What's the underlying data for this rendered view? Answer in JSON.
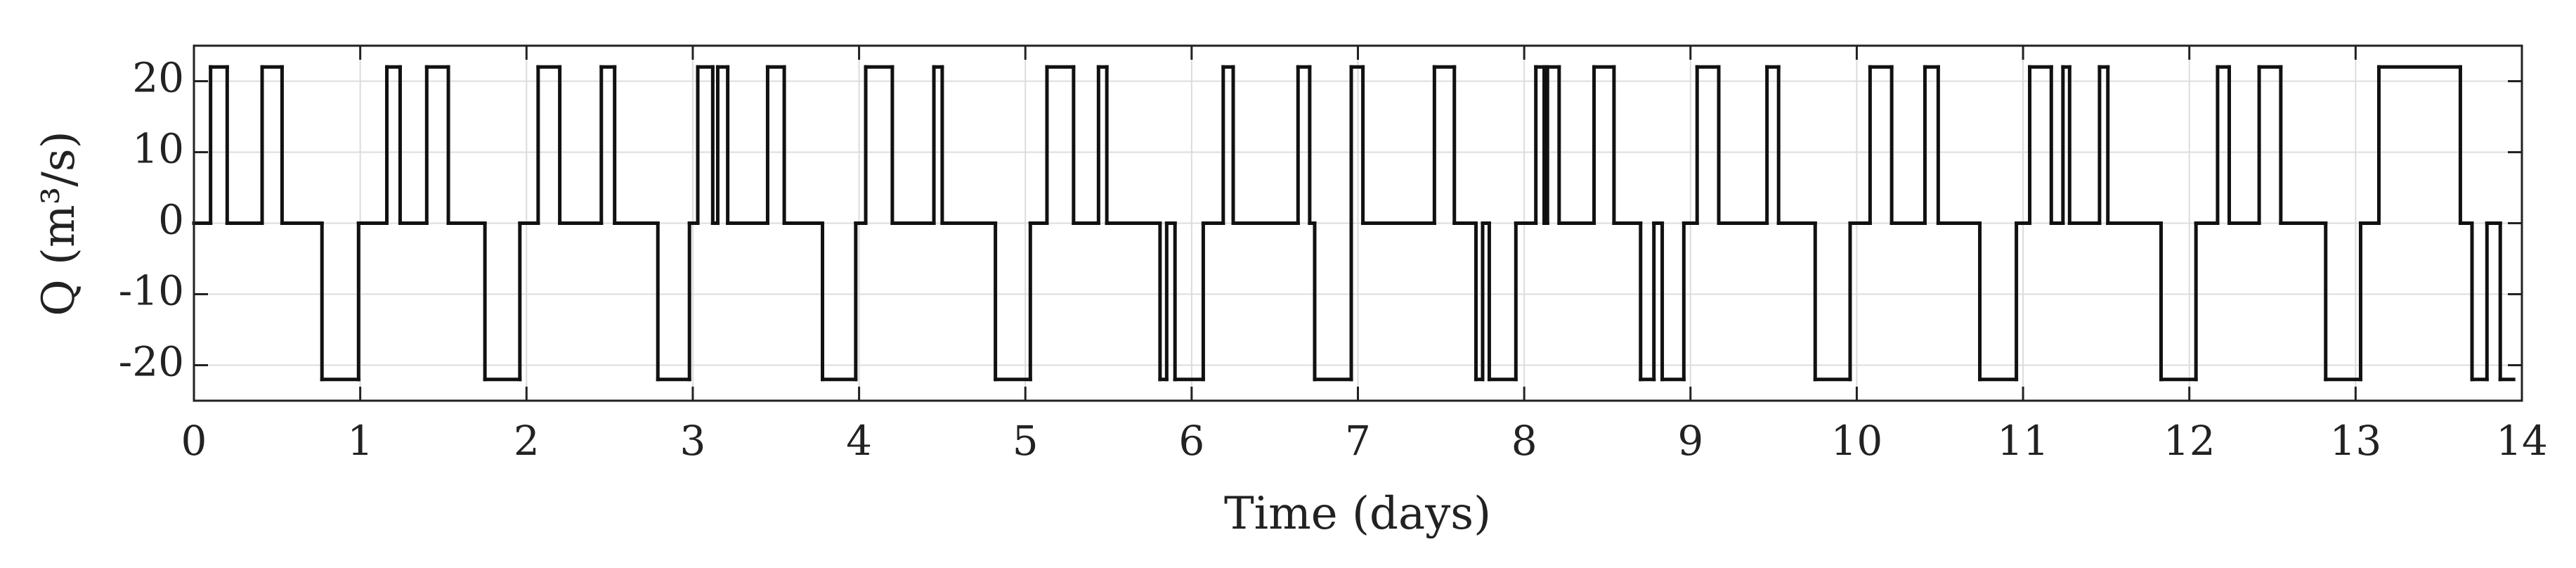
{
  "chart_data": {
    "type": "line",
    "xlabel": "Time (days)",
    "ylabel": "Q (m³/s)",
    "x": [
      0,
      0.1,
      0.2,
      0.41,
      0.53,
      0.77,
      0.99,
      1.16,
      1.24,
      1.4,
      1.53,
      1.75,
      1.96,
      2.07,
      2.2,
      2.45,
      2.53,
      2.79,
      2.98,
      3.03,
      3.12,
      3.15,
      3.21,
      3.45,
      3.55,
      3.78,
      3.98,
      4.04,
      4.2,
      4.45,
      4.5,
      4.82,
      5.03,
      5.13,
      5.29,
      5.44,
      5.49,
      5.81,
      5.85,
      5.9,
      6.07,
      6.19,
      6.25,
      6.64,
      6.71,
      6.74,
      6.96,
      7.03,
      7.46,
      7.58,
      7.71,
      7.75,
      7.79,
      7.95,
      8.07,
      8.12,
      8.14,
      8.21,
      8.42,
      8.54,
      8.7,
      8.78,
      8.83,
      8.96,
      9.04,
      9.17,
      9.46,
      9.53,
      9.75,
      9.96,
      10.08,
      10.21,
      10.41,
      10.49,
      10.74,
      10.96,
      11.04,
      11.17,
      11.24,
      11.28,
      11.46,
      11.51,
      11.83,
      12.04,
      12.17,
      12.24,
      12.42,
      12.55,
      12.82,
      13.03,
      13.14,
      13.63,
      13.7,
      13.79,
      13.87,
      13.95
    ],
    "series": [
      {
        "color": "#111111",
        "values": [
          0,
          22,
          0,
          22,
          0,
          -22,
          0,
          22,
          0,
          22,
          0,
          -22,
          0,
          22,
          0,
          22,
          0,
          -22,
          0,
          22,
          0,
          22,
          0,
          22,
          0,
          -22,
          0,
          22,
          0,
          22,
          0,
          -22,
          0,
          22,
          0,
          22,
          0,
          -22,
          0,
          -22,
          0,
          22,
          0,
          22,
          0,
          -22,
          22,
          0,
          22,
          0,
          -22,
          0,
          -22,
          0,
          22,
          0,
          22,
          0,
          22,
          0,
          -22,
          0,
          -22,
          0,
          22,
          0,
          22,
          0,
          -22,
          0,
          22,
          0,
          22,
          0,
          -22,
          0,
          22,
          0,
          22,
          0,
          22,
          0,
          -22,
          0,
          22,
          0,
          22,
          0,
          -22,
          0,
          22,
          0,
          -22,
          0,
          -22,
          -22
        ]
      }
    ],
    "xlim": [
      0,
      14
    ],
    "xticks": [
      0,
      1,
      2,
      3,
      4,
      5,
      6,
      7,
      8,
      9,
      10,
      11,
      12,
      13,
      14
    ],
    "ylim": [
      -25,
      25
    ],
    "yticks": [
      -20,
      -10,
      0,
      10,
      20
    ],
    "grid": true
  }
}
